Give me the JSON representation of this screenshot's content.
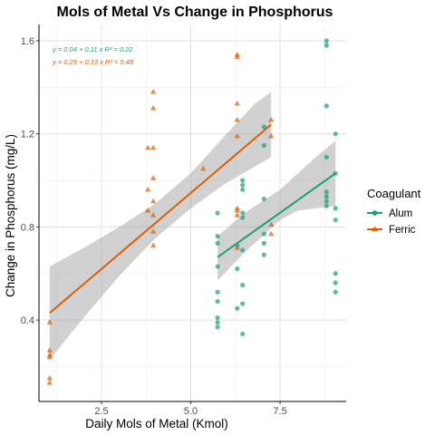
{
  "chart_data": {
    "type": "scatter",
    "title": "Mols of Metal Vs Change in Phosphorus",
    "xlabel": "Daily Mols of Metal (Kmol)",
    "ylabel": "Change in Phosphorus (mg/L)",
    "xlim": [
      0.75,
      9.35
    ],
    "ylim": [
      0.05,
      1.67
    ],
    "xticks": [
      2.5,
      5.0,
      7.5
    ],
    "xtick_labels": [
      "2.5",
      "5.0",
      "7.5"
    ],
    "yticks": [
      0.4,
      0.8,
      1.2,
      1.6
    ],
    "ytick_labels": [
      "0.4",
      "0.8",
      "1.2",
      "1.6"
    ],
    "grid": true,
    "legend": {
      "title": "Coagulant",
      "position": "right"
    },
    "series": [
      {
        "name": "Alum",
        "marker": "circle",
        "color": "#1b9e77",
        "points": [
          [
            5.75,
            0.86
          ],
          [
            5.75,
            0.76
          ],
          [
            5.75,
            0.73
          ],
          [
            5.75,
            0.63
          ],
          [
            5.75,
            0.52
          ],
          [
            5.75,
            0.48
          ],
          [
            5.75,
            0.41
          ],
          [
            5.75,
            0.39
          ],
          [
            5.75,
            0.37
          ],
          [
            6.3,
            0.72
          ],
          [
            6.3,
            0.62
          ],
          [
            6.3,
            0.45
          ],
          [
            6.45,
            1.0
          ],
          [
            6.45,
            0.98
          ],
          [
            6.45,
            0.96
          ],
          [
            6.45,
            0.86
          ],
          [
            6.45,
            0.84
          ],
          [
            6.45,
            0.7
          ],
          [
            6.45,
            0.55
          ],
          [
            6.45,
            0.47
          ],
          [
            6.45,
            0.34
          ],
          [
            7.05,
            1.23
          ],
          [
            7.05,
            1.15
          ],
          [
            7.05,
            0.92
          ],
          [
            7.05,
            0.77
          ],
          [
            7.05,
            0.73
          ],
          [
            7.05,
            0.68
          ],
          [
            8.8,
            1.6
          ],
          [
            8.8,
            1.58
          ],
          [
            8.8,
            1.32
          ],
          [
            8.8,
            1.1
          ],
          [
            8.8,
            0.95
          ],
          [
            8.8,
            0.93
          ],
          [
            8.8,
            0.91
          ],
          [
            8.8,
            0.89
          ],
          [
            9.05,
            1.2
          ],
          [
            9.05,
            1.03
          ],
          [
            9.05,
            0.88
          ],
          [
            9.05,
            0.83
          ],
          [
            9.05,
            0.6
          ],
          [
            9.05,
            0.56
          ],
          [
            9.05,
            0.52
          ]
        ]
      },
      {
        "name": "Ferric",
        "marker": "triangle",
        "color": "#d95f02",
        "points": [
          [
            1.05,
            0.39
          ],
          [
            1.05,
            0.27
          ],
          [
            1.05,
            0.25
          ],
          [
            1.05,
            0.24
          ],
          [
            1.05,
            0.15
          ],
          [
            1.05,
            0.13
          ],
          [
            3.8,
            1.14
          ],
          [
            3.8,
            0.96
          ],
          [
            3.8,
            0.87
          ],
          [
            3.95,
            1.38
          ],
          [
            3.95,
            1.31
          ],
          [
            3.95,
            1.14
          ],
          [
            3.95,
            1.01
          ],
          [
            3.95,
            0.91
          ],
          [
            3.95,
            0.85
          ],
          [
            3.95,
            0.78
          ],
          [
            3.95,
            0.72
          ],
          [
            5.35,
            1.05
          ],
          [
            6.3,
            1.54
          ],
          [
            6.3,
            1.53
          ],
          [
            6.3,
            1.33
          ],
          [
            6.3,
            1.26
          ],
          [
            6.3,
            1.19
          ],
          [
            6.3,
            0.88
          ],
          [
            6.3,
            0.87
          ],
          [
            6.3,
            0.85
          ],
          [
            6.3,
            0.71
          ],
          [
            7.25,
            1.26
          ],
          [
            7.25,
            1.19
          ],
          [
            7.25,
            0.81
          ],
          [
            7.25,
            0.77
          ]
        ]
      }
    ],
    "fits": [
      {
        "series": "Alum",
        "label": "y = 0.04 + 0.11 x   R² = 0.22",
        "x_range": [
          5.75,
          9.05
        ],
        "y_range": [
          0.67,
          1.03
        ],
        "band": {
          "x": [
            5.75,
            6.5,
            7.0,
            7.5,
            8.0,
            8.5,
            9.05
          ],
          "lower": [
            0.57,
            0.69,
            0.76,
            0.83,
            0.87,
            0.88,
            0.89
          ],
          "upper": [
            0.76,
            0.86,
            0.91,
            0.96,
            1.03,
            1.1,
            1.17
          ]
        }
      },
      {
        "series": "Ferric",
        "label": "y = 0.29 + 0.13 x   R² = 0.48",
        "x_range": [
          1.05,
          7.25
        ],
        "y_range": [
          0.43,
          1.24
        ],
        "band": {
          "x": [
            1.05,
            2.0,
            3.0,
            4.0,
            5.0,
            6.0,
            6.8,
            7.25
          ],
          "lower": [
            0.23,
            0.41,
            0.59,
            0.75,
            0.88,
            0.99,
            1.06,
            1.1
          ],
          "upper": [
            0.63,
            0.71,
            0.8,
            0.9,
            1.03,
            1.2,
            1.33,
            1.38
          ]
        }
      }
    ]
  }
}
